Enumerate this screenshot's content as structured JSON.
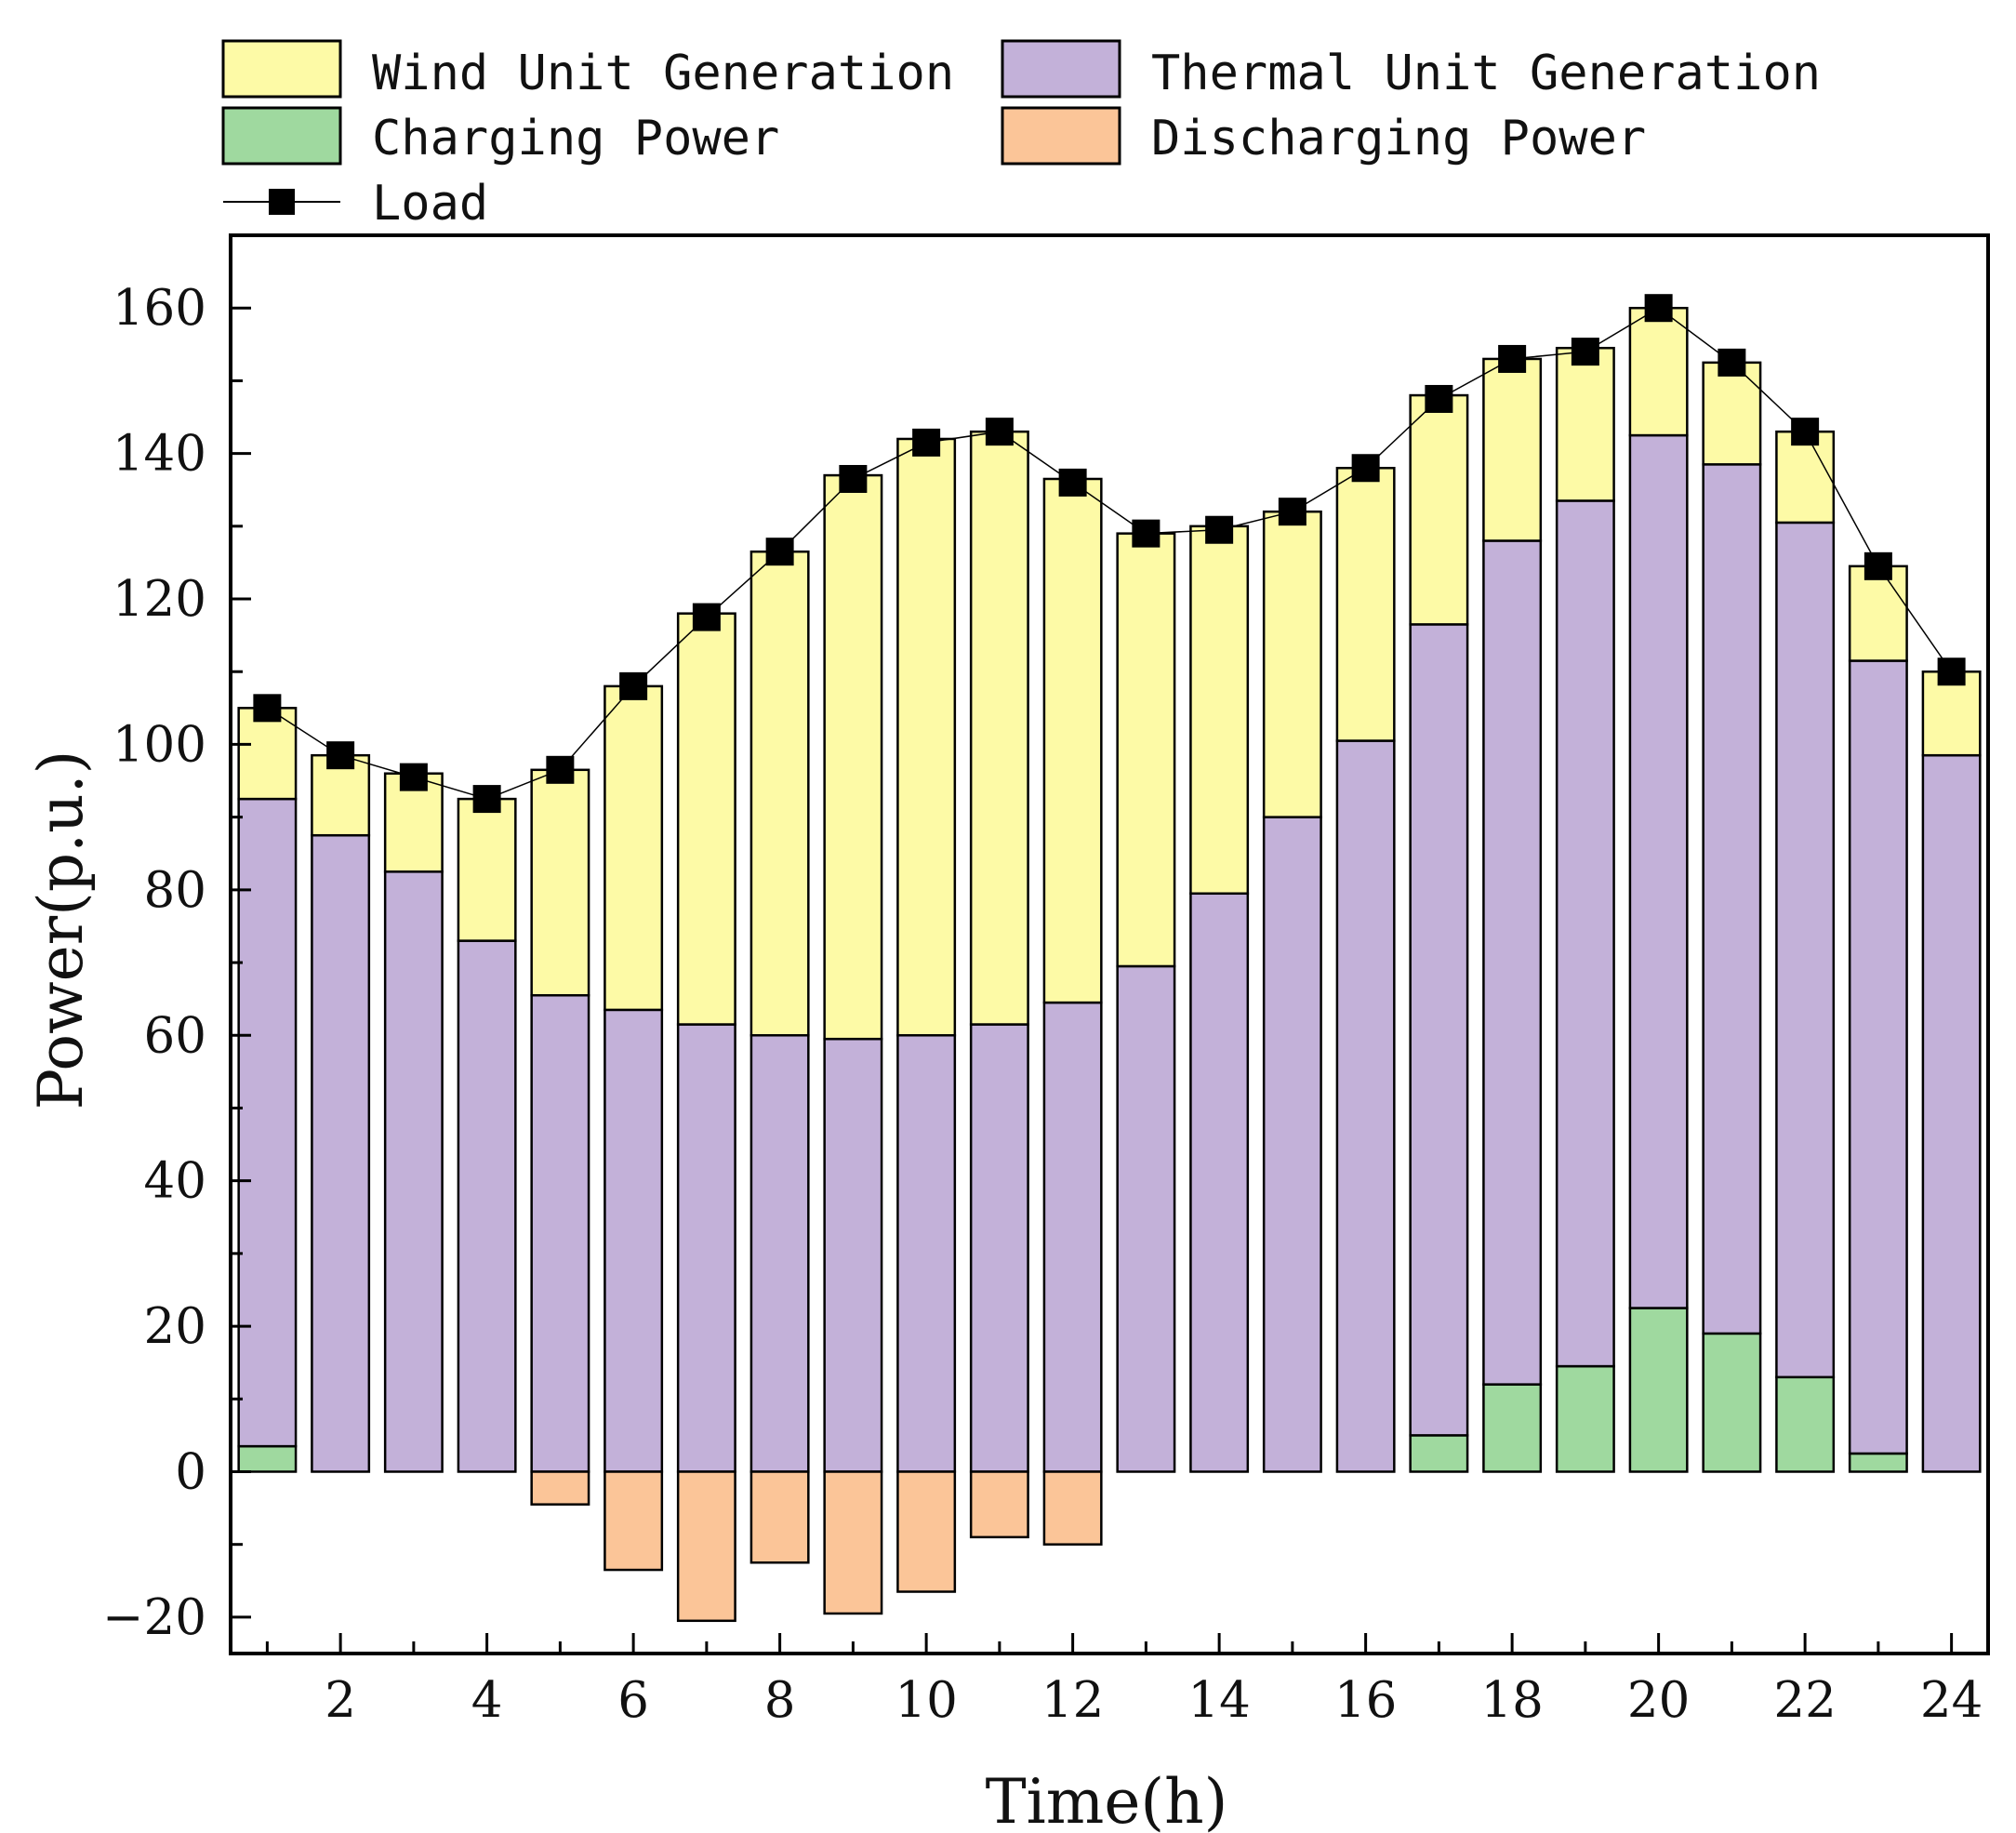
{
  "chart_data": {
    "type": "bar",
    "title": "",
    "xlabel": "Time(h)",
    "ylabel": "Power(p.u.)",
    "ylim": [
      -25,
      170
    ],
    "xlim": [
      0.5,
      24.5
    ],
    "y_ticks": [
      -20,
      0,
      20,
      40,
      60,
      80,
      100,
      120,
      140,
      160
    ],
    "x_ticks": [
      2,
      4,
      6,
      8,
      10,
      12,
      14,
      16,
      18,
      20,
      22,
      24
    ],
    "categories": [
      1,
      2,
      3,
      4,
      5,
      6,
      7,
      8,
      9,
      10,
      11,
      12,
      13,
      14,
      15,
      16,
      17,
      18,
      19,
      20,
      21,
      22,
      23,
      24
    ],
    "legend_position": "top",
    "series": [
      {
        "name": "Charging Power",
        "key": "charging",
        "color": "#9fd99f",
        "values": [
          3.5,
          0,
          0,
          0,
          0,
          0,
          0,
          0,
          0,
          0,
          0,
          0,
          0,
          0,
          0,
          0,
          5,
          12,
          14.5,
          22.5,
          19,
          13,
          2.5,
          0
        ]
      },
      {
        "name": "Thermal Unit Generation",
        "key": "thermal",
        "color": "#c3b1d9",
        "values": [
          89,
          87.5,
          82.5,
          73,
          65.5,
          63.5,
          61.5,
          60,
          59.5,
          60,
          61.5,
          64.5,
          69.5,
          79.5,
          90,
          100.5,
          111.5,
          116,
          119,
          120,
          119.5,
          117.5,
          109,
          98.5
        ]
      },
      {
        "name": "Wind Unit Generation",
        "key": "wind",
        "color": "#fdfaa6",
        "values": [
          12.5,
          11,
          13.5,
          19.5,
          31,
          44.5,
          56.5,
          66.5,
          77.5,
          82,
          81.5,
          72,
          59.5,
          50.5,
          42,
          37.5,
          31.5,
          25,
          21,
          17.5,
          14,
          12.5,
          13,
          11.5
        ]
      },
      {
        "name": "Discharging Power",
        "key": "discharging",
        "color": "#fbc598",
        "values": [
          0,
          0,
          0,
          0,
          -4.5,
          -13.5,
          -20.5,
          -12.5,
          -19.5,
          -16.5,
          -9,
          -10,
          0,
          0,
          0,
          0,
          0,
          0,
          0,
          0,
          0,
          0,
          0,
          0
        ]
      },
      {
        "name": "Load",
        "key": "load",
        "type": "line",
        "color": "#000000",
        "values": [
          105,
          98.5,
          95.5,
          92.5,
          96.5,
          108,
          117.5,
          126.5,
          136.5,
          141.5,
          143,
          136,
          129,
          129.5,
          132,
          138,
          147.5,
          153,
          154,
          160,
          152.5,
          143,
          124.5,
          110
        ]
      }
    ],
    "legend": [
      {
        "key": "wind",
        "label": "Wind Unit Generation"
      },
      {
        "key": "thermal",
        "label": "Thermal Unit Generation"
      },
      {
        "key": "charging",
        "label": "Charging Power"
      },
      {
        "key": "discharging",
        "label": "Discharging Power"
      },
      {
        "key": "load",
        "label": "Load"
      }
    ]
  }
}
